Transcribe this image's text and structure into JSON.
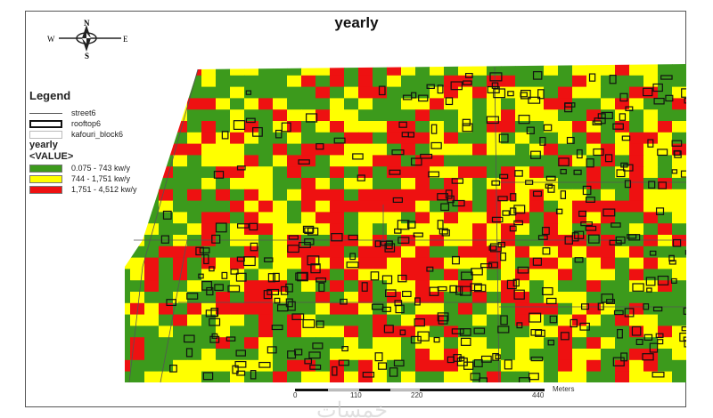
{
  "title": "yearly",
  "compass": {
    "n": "N",
    "s": "S",
    "e": "E",
    "w": "W"
  },
  "legend": {
    "heading": "Legend",
    "layers": [
      {
        "label": "street6",
        "symbol": "line"
      },
      {
        "label": "rooftop6",
        "symbol": "outline-box"
      },
      {
        "label": "kafouri_block6",
        "symbol": "empty-box"
      }
    ],
    "raster_name": "yearly",
    "field": "<VALUE>",
    "classes": [
      {
        "label": "0.075 - 743 kw/y",
        "color": "#3c9a1c"
      },
      {
        "label": "744 - 1,751 kw/y",
        "color": "#ffff00"
      },
      {
        "label": "1,751 - 4,512 kw/y",
        "color": "#ee1111"
      }
    ]
  },
  "scale_bar": {
    "ticks": [
      "0",
      "110",
      "220",
      "440"
    ],
    "unit": "Meters"
  },
  "watermark": "خمسات"
}
